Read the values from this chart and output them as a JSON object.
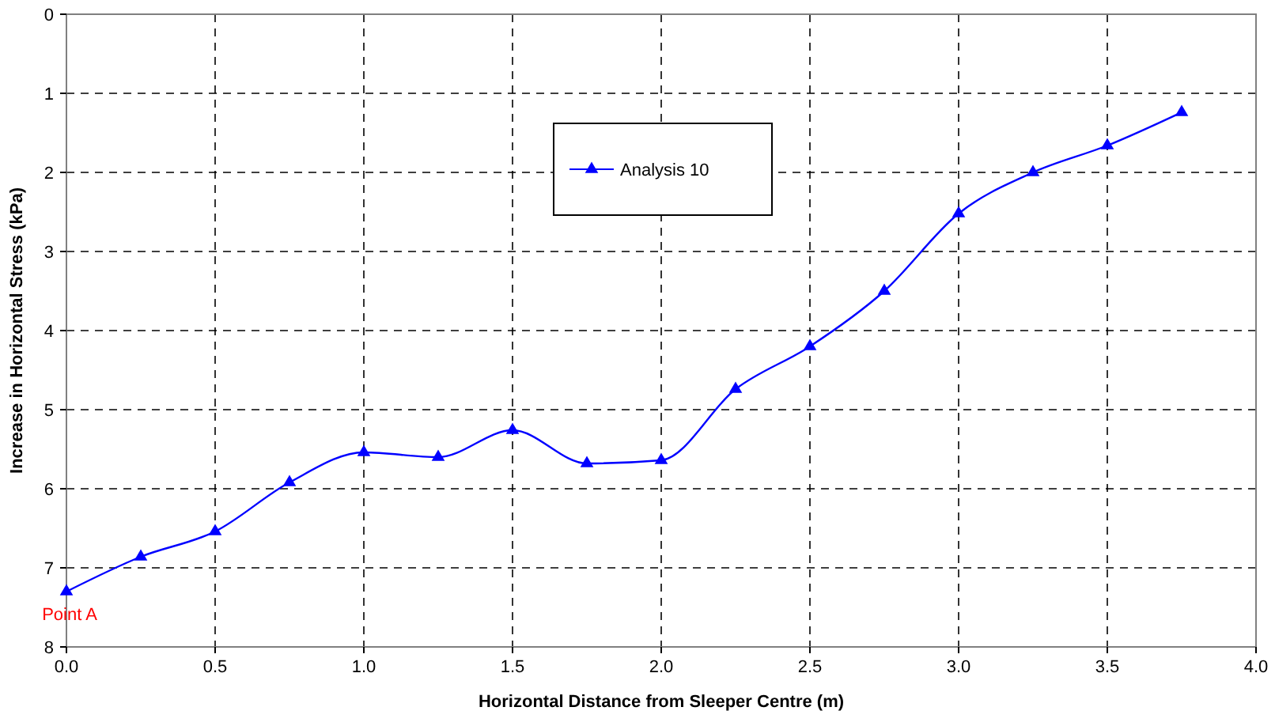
{
  "chart_data": {
    "type": "line",
    "xlabel": "Horizontal Distance from Sleeper Centre (m)",
    "ylabel": "Increase in Horizontal Stress (kPa)",
    "x": [
      0,
      0.25,
      0.5,
      0.75,
      1.0,
      1.25,
      1.5,
      1.75,
      2.0,
      2.25,
      2.5,
      2.75,
      3.0,
      3.25,
      3.5,
      3.75
    ],
    "series": [
      {
        "name": "Analysis 10",
        "color": "#0000ff",
        "values": [
          7.3,
          6.86,
          6.54,
          5.92,
          5.54,
          5.6,
          5.26,
          5.68,
          5.64,
          4.74,
          4.2,
          3.5,
          2.52,
          2.0,
          1.66,
          1.24
        ]
      }
    ],
    "xlim": [
      0,
      4
    ],
    "xticks": [
      {
        "value": 0,
        "label": "0.0"
      },
      {
        "value": 0.5,
        "label": "0.5"
      },
      {
        "value": 1,
        "label": "1.0"
      },
      {
        "value": 1.5,
        "label": "1.5"
      },
      {
        "value": 2,
        "label": "2.0"
      },
      {
        "value": 2.5,
        "label": "2.5"
      },
      {
        "value": 3,
        "label": "3.0"
      },
      {
        "value": 3.5,
        "label": "3.5"
      },
      {
        "value": 4,
        "label": "4.0"
      }
    ],
    "ylim": [
      8,
      0
    ],
    "yticks": [
      0,
      1,
      2,
      3,
      4,
      5,
      6,
      7,
      8
    ],
    "grid": true,
    "legend": "top",
    "marker": "triangle",
    "line_style": "solid",
    "annotations": [
      {
        "text": "Point A",
        "x": 0,
        "y": 7.3
      }
    ]
  }
}
